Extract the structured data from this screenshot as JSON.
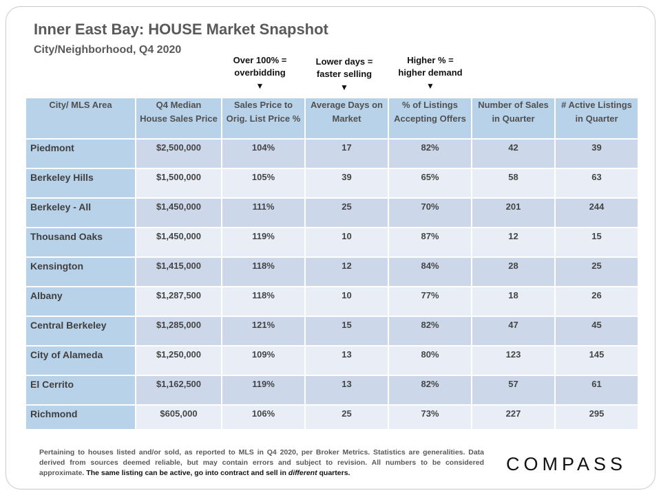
{
  "header": {
    "title": "Inner East Bay: HOUSE Market Snapshot",
    "subtitle": "City/Neighborhood,  Q4 2020"
  },
  "annotations": [
    {
      "line1": "Over 100% =",
      "line2": "overbidding"
    },
    {
      "line1": "Lower days =",
      "line2": "faster selling"
    },
    {
      "line1": "Higher % =",
      "line2": "higher demand"
    }
  ],
  "arrow_glyph": "▼",
  "table": {
    "columns": [
      {
        "line1": "City/ MLS Area",
        "line2": ""
      },
      {
        "line1": "Q4 Median",
        "line2": "House Sales Price"
      },
      {
        "line1": "Sales Price to",
        "line2": "Orig. List Price %"
      },
      {
        "line1": "Average Days on",
        "line2": "Market"
      },
      {
        "line1": "% of Listings",
        "line2": "Accepting Offers"
      },
      {
        "line1": "Number of Sales",
        "line2": "in Quarter"
      },
      {
        "line1": "# Active Listings",
        "line2": "in Quarter"
      }
    ],
    "rows": [
      [
        "Piedmont",
        "$2,500,000",
        "104%",
        "17",
        "82%",
        "42",
        "39"
      ],
      [
        "Berkeley Hills",
        "$1,500,000",
        "105%",
        "39",
        "65%",
        "58",
        "63"
      ],
      [
        "Berkeley - All",
        "$1,450,000",
        "111%",
        "25",
        "70%",
        "201",
        "244"
      ],
      [
        "Thousand Oaks",
        "$1,450,000",
        "119%",
        "10",
        "87%",
        "12",
        "15"
      ],
      [
        "Kensington",
        "$1,415,000",
        "118%",
        "12",
        "84%",
        "28",
        "25"
      ],
      [
        "Albany",
        "$1,287,500",
        "118%",
        "10",
        "77%",
        "18",
        "26"
      ],
      [
        "Central Berkeley",
        "$1,285,000",
        "121%",
        "15",
        "82%",
        "47",
        "45"
      ],
      [
        "City of Alameda",
        "$1,250,000",
        "109%",
        "13",
        "80%",
        "123",
        "145"
      ],
      [
        "El Cerrito",
        "$1,162,500",
        "119%",
        "13",
        "82%",
        "57",
        "61"
      ],
      [
        "Richmond",
        "$605,000",
        "106%",
        "25",
        "73%",
        "227",
        "295"
      ]
    ]
  },
  "footer": {
    "text": "Pertaining to houses listed and/or sold, as reported to MLS in Q4 2020, per Broker Metrics. Statistics are generalities. Data derived from sources deemed reliable, but may contain errors and subject to revision. All numbers to be considered approximate.",
    "emphasis_a": "The same listing can be active, go into contract and sell in",
    "emphasis_italic": "different",
    "emphasis_b": "quarters."
  },
  "logo": "COMPASS",
  "colors": {
    "header_blue": "#b8d2ea",
    "row_dark": "#ccd7ea",
    "row_light": "#e8edf6"
  }
}
